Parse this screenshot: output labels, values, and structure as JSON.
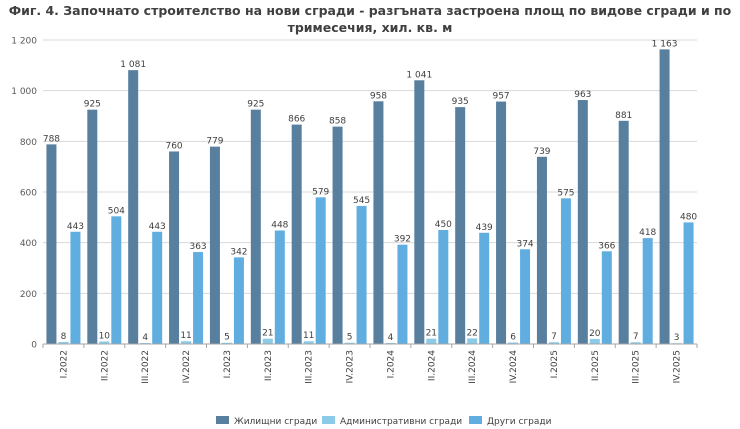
{
  "chart_data": {
    "type": "bar",
    "title_line1": "Фиг. 4. Започнато строителство на нови сгради - разгъната застроена площ по видове сгради и по",
    "title_line2": "тримесечия, хил. кв. м",
    "categories": [
      "I.2022",
      "II.2022",
      "III.2022",
      "IV.2022",
      "I.2023",
      "II.2023",
      "III.2023",
      "IV.2023",
      "I.2024",
      "II.2024",
      "III.2024",
      "IV.2024",
      "I.2025",
      "II.2025",
      "III.2025",
      "IV.2025"
    ],
    "series": [
      {
        "name": "Жилищни сгради",
        "color": "#587f9e",
        "values": [
          788,
          925,
          1081,
          760,
          779,
          925,
          866,
          858,
          958,
          1041,
          935,
          957,
          739,
          963,
          881,
          1163
        ]
      },
      {
        "name": "Административни сгради",
        "color": "#8ccbe8",
        "values": [
          8,
          10,
          4,
          11,
          5,
          21,
          11,
          5,
          4,
          21,
          22,
          6,
          7,
          20,
          7,
          3
        ]
      },
      {
        "name": "Други сгради",
        "color": "#60aee0",
        "values": [
          443,
          504,
          443,
          363,
          342,
          448,
          579,
          545,
          392,
          450,
          439,
          374,
          575,
          366,
          418,
          480
        ]
      }
    ],
    "ylim": [
      0,
      1200
    ],
    "yticks": [
      0,
      200,
      400,
      600,
      800,
      1000,
      1200
    ],
    "ytick_labels": [
      "0",
      "200",
      "400",
      "600",
      "800",
      "1 000",
      "1 200"
    ],
    "grid": true,
    "legend_position": "bottom-center",
    "xlabel": "",
    "ylabel": ""
  }
}
